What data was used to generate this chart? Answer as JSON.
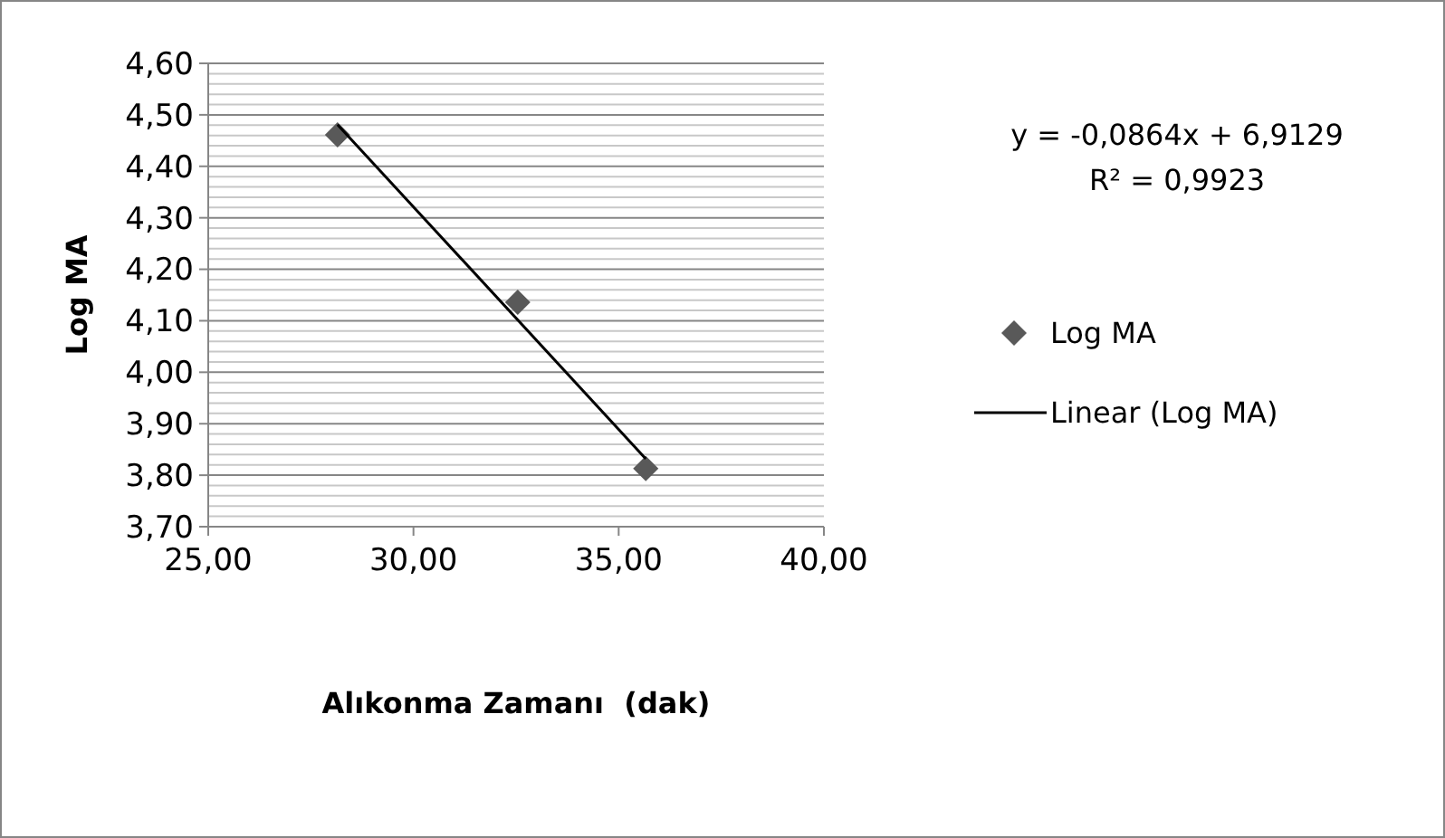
{
  "chart_data": {
    "type": "scatter",
    "xlabel": "Alıkonma Zamanı  (dak)",
    "ylabel": "Log MA",
    "xlim": [
      25,
      40
    ],
    "ylim": [
      3.7,
      4.6
    ],
    "xticks": [
      {
        "value": 25,
        "label": "25,00"
      },
      {
        "value": 30,
        "label": "30,00"
      },
      {
        "value": 35,
        "label": "35,00"
      },
      {
        "value": 40,
        "label": "40,00"
      }
    ],
    "yticks": [
      {
        "value": 3.7,
        "label": "3,70"
      },
      {
        "value": 3.72,
        "label": null
      },
      {
        "value": 3.74,
        "label": null
      },
      {
        "value": 3.76,
        "label": null
      },
      {
        "value": 3.78,
        "label": null
      },
      {
        "value": 3.8,
        "label": "3,80"
      },
      {
        "value": 3.82,
        "label": null
      },
      {
        "value": 3.84,
        "label": null
      },
      {
        "value": 3.86,
        "label": null
      },
      {
        "value": 3.88,
        "label": null
      },
      {
        "value": 3.9,
        "label": "3,90"
      },
      {
        "value": 3.92,
        "label": null
      },
      {
        "value": 3.94,
        "label": null
      },
      {
        "value": 3.96,
        "label": null
      },
      {
        "value": 3.98,
        "label": null
      },
      {
        "value": 4.0,
        "label": "4,00"
      },
      {
        "value": 4.02,
        "label": null
      },
      {
        "value": 4.04,
        "label": null
      },
      {
        "value": 4.06,
        "label": null
      },
      {
        "value": 4.08,
        "label": null
      },
      {
        "value": 4.1,
        "label": "4,10"
      },
      {
        "value": 4.12,
        "label": null
      },
      {
        "value": 4.14,
        "label": null
      },
      {
        "value": 4.16,
        "label": null
      },
      {
        "value": 4.18,
        "label": null
      },
      {
        "value": 4.2,
        "label": "4,20"
      },
      {
        "value": 4.22,
        "label": null
      },
      {
        "value": 4.24,
        "label": null
      },
      {
        "value": 4.26,
        "label": null
      },
      {
        "value": 4.28,
        "label": null
      },
      {
        "value": 4.3,
        "label": "4,30"
      },
      {
        "value": 4.32,
        "label": null
      },
      {
        "value": 4.34,
        "label": null
      },
      {
        "value": 4.36,
        "label": null
      },
      {
        "value": 4.38,
        "label": null
      },
      {
        "value": 4.4,
        "label": "4,40"
      },
      {
        "value": 4.42,
        "label": null
      },
      {
        "value": 4.44,
        "label": null
      },
      {
        "value": 4.46,
        "label": null
      },
      {
        "value": 4.48,
        "label": null
      },
      {
        "value": 4.5,
        "label": "4,50"
      },
      {
        "value": 4.52,
        "label": null
      },
      {
        "value": 4.54,
        "label": null
      },
      {
        "value": 4.56,
        "label": null
      },
      {
        "value": 4.58,
        "label": null
      },
      {
        "value": 4.6,
        "label": "4,60"
      }
    ],
    "grid": "y",
    "legend": "right",
    "marker": "diamond",
    "series": [
      {
        "name": "Log MA",
        "color": "#595959",
        "x": [
          28.15,
          32.54,
          35.66
        ],
        "values": [
          4.461,
          4.136,
          3.813
        ]
      },
      {
        "name": "Linear (Log MA)",
        "type": "line",
        "color": "#000000",
        "marker": "none",
        "x": [
          28.15,
          35.66
        ],
        "values": [
          4.481,
          3.832
        ]
      }
    ],
    "annotations": [
      "y = -0,0864x + 6,9129",
      "R² = 0,9923"
    ]
  }
}
